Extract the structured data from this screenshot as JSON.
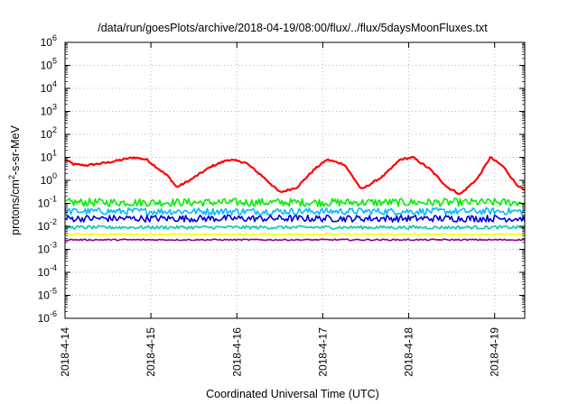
{
  "chart_data": {
    "type": "line",
    "title": "/data/run/goesPlots/archive/2018-04-19/08:00/flux/../flux/5daysMoonFluxes.txt",
    "xlabel": "Coordinated Universal Time (UTC)",
    "ylabel": {
      "prefix": "protons/cm",
      "sup": "2",
      "suffix": "-s-sr-MeV"
    },
    "yscale": "log",
    "ylim_exp": [
      -6,
      6
    ],
    "y_ticks": [
      {
        "base": "10",
        "exp": "-6"
      },
      {
        "base": "10",
        "exp": "-5"
      },
      {
        "base": "10",
        "exp": "-4"
      },
      {
        "base": "10",
        "exp": "-3"
      },
      {
        "base": "10",
        "exp": "-2"
      },
      {
        "base": "10",
        "exp": "-1"
      },
      {
        "base": "10",
        "exp": "0"
      },
      {
        "base": "10",
        "exp": "1"
      },
      {
        "base": "10",
        "exp": "2"
      },
      {
        "base": "10",
        "exp": "3"
      },
      {
        "base": "10",
        "exp": "4"
      },
      {
        "base": "10",
        "exp": "5"
      },
      {
        "base": "10",
        "exp": "6"
      }
    ],
    "xlim": [
      0,
      5.35
    ],
    "x_ticks": [
      {
        "day": 0,
        "label": "2018-4-14"
      },
      {
        "day": 1,
        "label": "2018-4-15"
      },
      {
        "day": 2,
        "label": "2018-4-16"
      },
      {
        "day": 3,
        "label": "2018-4-17"
      },
      {
        "day": 4,
        "label": "2018-4-18"
      },
      {
        "day": 5,
        "label": "2018-4-19"
      }
    ],
    "grid": true,
    "series": [
      {
        "color": "#ff0000",
        "noise": 0.08,
        "x": [
          0,
          0.1,
          0.25,
          0.5,
          0.8,
          0.95,
          1.2,
          1.3,
          1.45,
          1.7,
          1.9,
          2.1,
          2.3,
          2.5,
          2.7,
          2.9,
          3.05,
          3.25,
          3.45,
          3.7,
          3.9,
          4.05,
          4.25,
          4.45,
          4.6,
          4.8,
          4.95,
          5.1,
          5.25,
          5.35
        ],
        "y": [
          8,
          5,
          4.5,
          6,
          10,
          8,
          1.5,
          0.5,
          1,
          4,
          8,
          6,
          1.5,
          0.3,
          0.5,
          3,
          8,
          5,
          0.4,
          1.5,
          8,
          10,
          3,
          0.5,
          0.25,
          1.2,
          10,
          4,
          0.7,
          0.35
        ]
      },
      {
        "color": "#00ee00",
        "noise": 0.35,
        "x": [
          0,
          5.35
        ],
        "y": [
          0.11,
          0.11
        ]
      },
      {
        "color": "#00bbff",
        "noise": 0.3,
        "x": [
          0,
          5.35
        ],
        "y": [
          0.045,
          0.045
        ]
      },
      {
        "color": "#0000dd",
        "noise": 0.3,
        "x": [
          0,
          5.35
        ],
        "y": [
          0.022,
          0.022
        ]
      },
      {
        "color": "#00ccaa",
        "noise": 0.15,
        "x": [
          0,
          5.35
        ],
        "y": [
          0.009,
          0.009
        ]
      },
      {
        "color": "#ffff00",
        "noise": 0.08,
        "x": [
          0,
          5.35
        ],
        "y": [
          0.0045,
          0.0045
        ]
      },
      {
        "color": "#880088",
        "noise": 0.06,
        "x": [
          0,
          5.35
        ],
        "y": [
          0.0026,
          0.0026
        ]
      }
    ]
  }
}
